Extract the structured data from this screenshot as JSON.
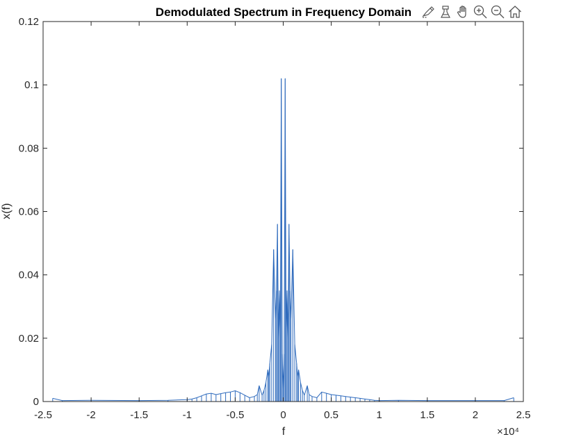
{
  "chart_data": {
    "type": "line",
    "title": "Demodulated Spectrum in Frequency Domain",
    "xlabel": "f",
    "ylabel": "x(f)",
    "x_exponent_label": "×10⁴",
    "xlim": [
      -2.5,
      2.5
    ],
    "ylim": [
      0,
      0.12
    ],
    "xticks": [
      -2.5,
      -2,
      -1.5,
      -1,
      -0.5,
      0,
      0.5,
      1,
      1.5,
      2,
      2.5
    ],
    "xtick_labels": [
      "-2.5",
      "-2",
      "-1.5",
      "-1",
      "-0.5",
      "0",
      "0.5",
      "1",
      "1.5",
      "2",
      "2.5"
    ],
    "yticks": [
      0,
      0.02,
      0.04,
      0.06,
      0.08,
      0.1,
      0.12
    ],
    "ytick_labels": [
      "0",
      "0.02",
      "0.04",
      "0.06",
      "0.08",
      "0.1",
      "0.12"
    ],
    "grid": false,
    "line_color": "#2f6bbd",
    "series": [
      {
        "x": [
          -2.4,
          -2.3,
          -2.0,
          -1.5,
          -1.2,
          -1.0,
          -0.95,
          -0.9,
          -0.85,
          -0.8,
          -0.75,
          -0.7,
          -0.65,
          -0.6,
          -0.55,
          -0.5,
          -0.45,
          -0.4,
          -0.35,
          -0.3,
          -0.27,
          -0.25,
          -0.22,
          -0.2,
          -0.18,
          -0.16,
          -0.15,
          -0.14,
          -0.12,
          -0.1,
          -0.08,
          -0.07,
          -0.06,
          -0.05,
          -0.04,
          -0.03,
          -0.02,
          -0.01,
          0,
          0.01,
          0.02,
          0.03,
          0.04,
          0.05,
          0.06,
          0.07,
          0.08,
          0.1,
          0.12,
          0.14,
          0.15,
          0.16,
          0.18,
          0.2,
          0.22,
          0.25,
          0.27,
          0.3,
          0.35,
          0.4,
          0.45,
          0.5,
          0.55,
          0.6,
          0.65,
          0.7,
          0.75,
          0.8,
          0.85,
          0.9,
          0.95,
          1.0,
          1.2,
          1.5,
          2.0,
          2.3,
          2.4
        ],
        "y": [
          0.001,
          0.0003,
          0.0004,
          0.0003,
          0.0004,
          0.0006,
          0.0008,
          0.0012,
          0.0018,
          0.0024,
          0.0026,
          0.0022,
          0.0025,
          0.0028,
          0.003,
          0.0034,
          0.0028,
          0.002,
          0.0012,
          0.0016,
          0.0022,
          0.005,
          0.002,
          0.0035,
          0.006,
          0.01,
          0.008,
          0.012,
          0.018,
          0.048,
          0.026,
          0.035,
          0.056,
          0.02,
          0.035,
          0.023,
          0.102,
          0.015,
          0.004,
          0.015,
          0.102,
          0.023,
          0.035,
          0.02,
          0.056,
          0.035,
          0.026,
          0.048,
          0.018,
          0.012,
          0.008,
          0.01,
          0.006,
          0.0035,
          0.002,
          0.005,
          0.0022,
          0.0016,
          0.0012,
          0.003,
          0.0026,
          0.0022,
          0.002,
          0.0018,
          0.0016,
          0.0014,
          0.0012,
          0.001,
          0.0008,
          0.0006,
          0.0004,
          0.0003,
          0.0004,
          0.0003,
          0.0003,
          0.0003,
          0.0012
        ]
      }
    ]
  },
  "toolbar": {
    "icons": [
      "brush-data-icon",
      "data-tips-icon",
      "pan-hand-icon",
      "zoom-in-icon",
      "zoom-out-icon",
      "restore-home-icon"
    ]
  }
}
